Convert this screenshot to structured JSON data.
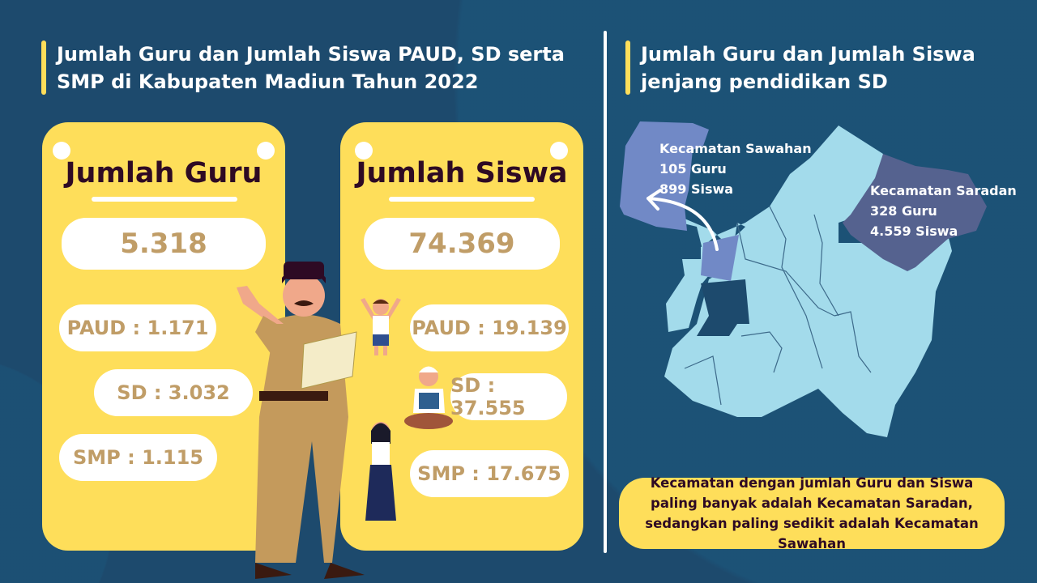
{
  "left_panel": {
    "title": "Jumlah Guru dan Jumlah Siswa PAUD, SD serta SMP di Kabupaten Madiun Tahun 2022",
    "guru_card": {
      "title": "Jumlah Guru",
      "total": "5.318",
      "items": [
        "PAUD : 1.171",
        "SD : 3.032",
        "SMP : 1.115"
      ]
    },
    "siswa_card": {
      "title": "Jumlah Siswa",
      "total": "74.369",
      "items": [
        "PAUD : 19.139",
        "SD : 37.555",
        "SMP : 17.675"
      ]
    }
  },
  "right_panel": {
    "title": "Jumlah Guru dan Jumlah Siswa jenjang pendidikan SD",
    "map": {
      "sawahan": {
        "name": "Kecamatan Sawahan",
        "guru": "105 Guru",
        "siswa": "899 Siswa"
      },
      "saradan": {
        "name": "Kecamatan Saradan",
        "guru": "328 Guru",
        "siswa": "4.559 Siswa"
      }
    },
    "summary": "Kecamatan dengan jumlah Guru dan Siswa paling banyak adalah Kecamatan Saradan, sedangkan paling sedikit adalah Kecamatan Sawahan"
  },
  "colors": {
    "background": "#1d4a6d",
    "accent_yellow": "#fede5a",
    "number_text": "#c09d67",
    "map_region": "#a3dbeb",
    "sawahan_highlight": "#7189c6",
    "saradan_highlight": "#55628f"
  }
}
